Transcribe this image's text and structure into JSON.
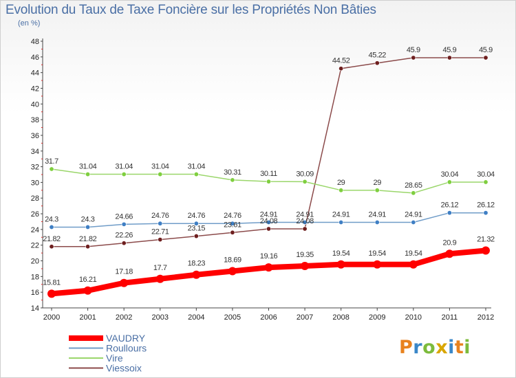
{
  "header": {
    "title": "Evolution du Taux de Taxe Foncière sur les Propriétés Non Bâties",
    "subtitle": "(en %)"
  },
  "logo": {
    "text": "Proxiti",
    "colors": [
      "#e8821e",
      "#3a87c8",
      "#7cbb3c",
      "#d9a600",
      "#3a87c8",
      "#e8821e",
      "#7cbb3c"
    ]
  },
  "chart_data": {
    "type": "line",
    "title": "Evolution du Taux de Taxe Foncière sur les Propriétés Non Bâties",
    "ylabel": "(en %)",
    "xlabel": "",
    "ylim": [
      14,
      48
    ],
    "ytick_step": 2,
    "grid": false,
    "categories": [
      "2000",
      "2001",
      "2002",
      "2003",
      "2004",
      "2005",
      "2006",
      "2007",
      "2008",
      "2009",
      "2010",
      "2011",
      "2012"
    ],
    "series": [
      {
        "name": "VAUDRY",
        "color": "#ff0000",
        "marker": "#ff0000",
        "width": 8,
        "values": [
          15.81,
          16.21,
          17.18,
          17.7,
          18.23,
          18.69,
          19.16,
          19.35,
          19.54,
          19.54,
          19.54,
          20.9,
          21.32
        ],
        "labels": [
          "15.81",
          "16.21",
          "17.18",
          "17.7",
          "18.23",
          "18.69",
          "19.16",
          "19.35",
          "19.54",
          "19.54",
          "19.54",
          "20.9",
          "21.32"
        ]
      },
      {
        "name": "Roullours",
        "color": "#6f9cc8",
        "marker": "#3f7fc4",
        "width": 1.5,
        "values": [
          24.3,
          24.3,
          24.66,
          24.76,
          24.76,
          24.76,
          24.91,
          24.91,
          24.91,
          24.91,
          24.91,
          26.12,
          26.12
        ],
        "labels": [
          "24.3",
          "24.3",
          "24.66",
          "24.76",
          "24.76",
          "24.76",
          "24.91",
          "24.91",
          "24.91",
          "24.91",
          "24.91",
          "26.12",
          "26.12"
        ]
      },
      {
        "name": "Vire",
        "color": "#9ad66a",
        "marker": "#7fcf3f",
        "width": 1.5,
        "values": [
          31.7,
          31.04,
          31.04,
          31.04,
          31.04,
          30.31,
          30.11,
          30.09,
          29,
          29,
          28.65,
          30.04,
          30.04
        ],
        "labels": [
          "31.7",
          "31.04",
          "31.04",
          "31.04",
          "31.04",
          "30.31",
          "30.11",
          "30.09",
          "29",
          "29",
          "28.65",
          "30.04",
          "30.04"
        ]
      },
      {
        "name": "Viessoix",
        "color": "#8b4a4a",
        "marker": "#6e1f1f",
        "width": 1.5,
        "values": [
          21.82,
          21.82,
          22.26,
          22.71,
          23.15,
          23.61,
          24.08,
          24.08,
          44.52,
          45.22,
          45.9,
          45.9,
          45.9
        ],
        "labels": [
          "21.82",
          "21.82",
          "22.26",
          "22.71",
          "23.15",
          "23.61",
          "24.08",
          "24.08",
          "44.52",
          "45.22",
          "45.9",
          "45.9",
          "45.9"
        ]
      }
    ],
    "legend_position": "bottom-left"
  }
}
